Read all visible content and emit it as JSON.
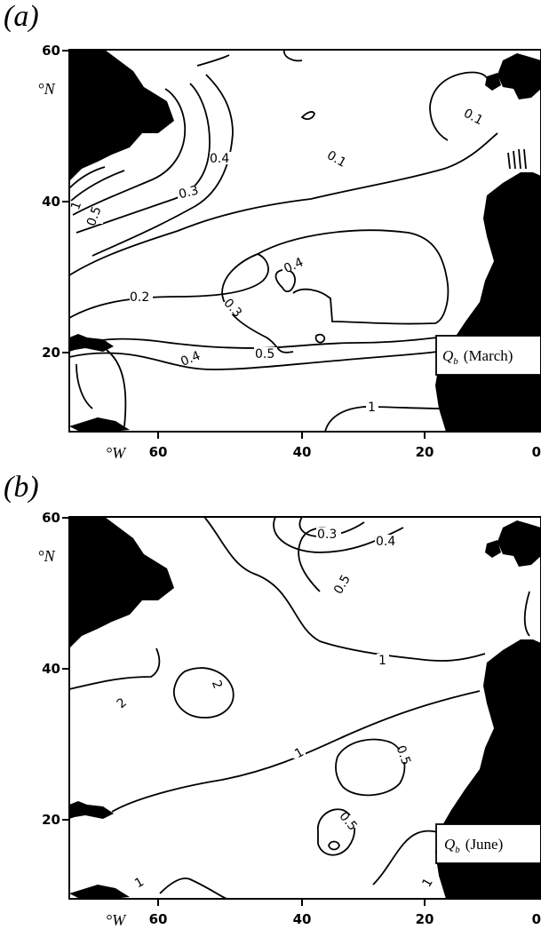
{
  "panels": [
    {
      "label": "(a)",
      "title_symbol": "Q",
      "title_sub": "b",
      "title_month": "(March)",
      "lat_unit": "°N",
      "lon_unit": "°W",
      "lat_ticks": [
        "60",
        "40",
        "20"
      ],
      "lon_ticks": [
        "60",
        "40",
        "20",
        "0"
      ],
      "contour_labels": [
        "0.1",
        "0.1",
        "0.4",
        "0.3",
        "0.5",
        "1",
        "0.2",
        "0.4",
        "0.3",
        "0.4",
        "0.5",
        "1"
      ]
    },
    {
      "label": "(b)",
      "title_symbol": "Q",
      "title_sub": "b",
      "title_month": "(June)",
      "lat_unit": "°N",
      "lon_unit": "°W",
      "lat_ticks": [
        "60",
        "40",
        "20"
      ],
      "lon_ticks": [
        "60",
        "40",
        "20",
        "0"
      ],
      "contour_labels": [
        "0.3",
        "0.4",
        "0.5",
        "1",
        "2",
        "2",
        "1",
        "0.5",
        "0.5",
        "1",
        "1"
      ]
    }
  ],
  "colors": {
    "land": "#000000",
    "ocean": "#ffffff",
    "lines": "#000000"
  }
}
